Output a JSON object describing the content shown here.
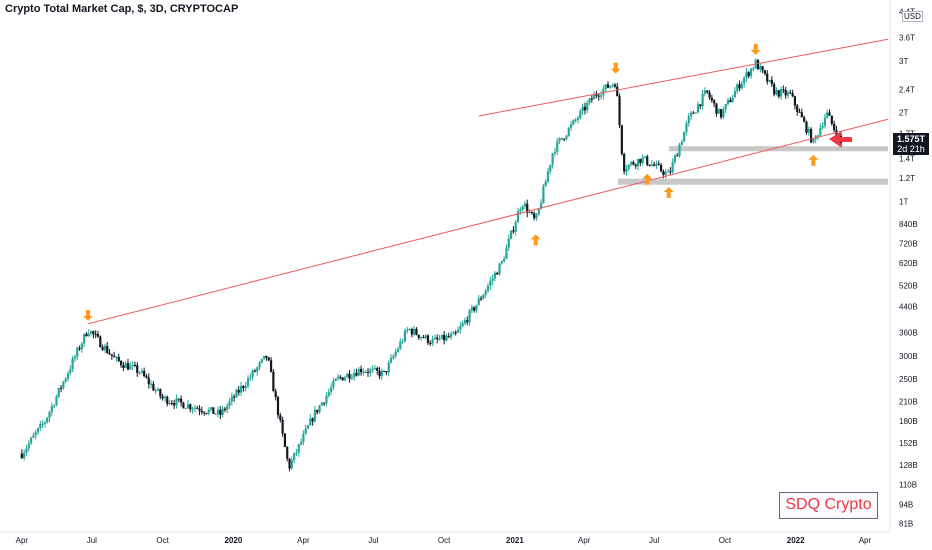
{
  "title": "Crypto Total Market Cap, $, 3D, CRYPTOCAP",
  "watermark": "SDQ Crypto",
  "currency": "USD",
  "last_price": {
    "value": "1.575T",
    "countdown": "2d 21h"
  },
  "colors": {
    "up": "#26a69a",
    "down": "#131722",
    "trendline": "#f05a5e",
    "zone": "#c8c8c8",
    "marker": "#ff9a1f",
    "pointer": "#f23645",
    "badge_text": "#e8394b"
  },
  "chart_data": {
    "type": "candlestick",
    "title": "Crypto Total Market Cap, $, 3D, CRYPTOCAP",
    "x_ticks": [
      "Apr",
      "Jul",
      "Oct",
      "2020",
      "Apr",
      "Jul",
      "Oct",
      "2021",
      "Apr",
      "Jul",
      "Oct",
      "2022",
      "Apr"
    ],
    "y_ticks": [
      "81B",
      "94B",
      "110B",
      "128B",
      "152B",
      "180B",
      "210B",
      "250B",
      "300B",
      "360B",
      "440B",
      "520B",
      "620B",
      "720B",
      "840B",
      "1T",
      "1.2T",
      "1.4T",
      "1.7T",
      "2T",
      "2.4T",
      "3T",
      "3.6T",
      "4.4T"
    ],
    "y_scale": "log",
    "y_range_billion": [
      77,
      4600
    ],
    "x_range": [
      "2019-03",
      "2022-05"
    ],
    "close_path_billion": [
      [
        "2019-04-01",
        140
      ],
      [
        "2019-05-01",
        180
      ],
      [
        "2019-06-26",
        370
      ],
      [
        "2019-08-01",
        290
      ],
      [
        "2019-09-01",
        265
      ],
      [
        "2019-10-01",
        215
      ],
      [
        "2019-11-15",
        200
      ],
      [
        "2019-12-15",
        190
      ],
      [
        "2020-01-15",
        240
      ],
      [
        "2020-02-14",
        300
      ],
      [
        "2020-03-13",
        125
      ],
      [
        "2020-04-15",
        190
      ],
      [
        "2020-05-15",
        250
      ],
      [
        "2020-06-15",
        270
      ],
      [
        "2020-07-15",
        260
      ],
      [
        "2020-08-15",
        370
      ],
      [
        "2020-09-15",
        335
      ],
      [
        "2020-10-15",
        350
      ],
      [
        "2020-11-15",
        460
      ],
      [
        "2020-12-15",
        620
      ],
      [
        "2021-01-10",
        1000
      ],
      [
        "2021-01-28",
        850
      ],
      [
        "2021-02-20",
        1500
      ],
      [
        "2021-03-15",
        1800
      ],
      [
        "2021-04-15",
        2300
      ],
      [
        "2021-05-12",
        2550
      ],
      [
        "2021-05-22",
        1300
      ],
      [
        "2021-06-15",
        1400
      ],
      [
        "2021-07-20",
        1230
      ],
      [
        "2021-08-15",
        1900
      ],
      [
        "2021-09-07",
        2350
      ],
      [
        "2021-09-25",
        1950
      ],
      [
        "2021-10-20",
        2500
      ],
      [
        "2021-11-10",
        2950
      ],
      [
        "2021-12-05",
        2350
      ],
      [
        "2021-12-25",
        2300
      ],
      [
        "2022-01-24",
        1580
      ],
      [
        "2022-02-10",
        2000
      ],
      [
        "2022-03-01",
        1575
      ]
    ],
    "trendlines": [
      {
        "name": "upper",
        "from": [
          "2020-11-15",
          1950
        ],
        "to": [
          "2022-05-01",
          3550
        ]
      },
      {
        "name": "lower",
        "from": [
          "2019-06-26",
          385
        ],
        "to": [
          "2022-05-01",
          1900
        ]
      }
    ],
    "zones": [
      {
        "from": "2021-07-20",
        "to": "2022-05-01",
        "low_billion": 1480,
        "high_billion": 1540
      },
      {
        "from": "2021-05-15",
        "to": "2022-05-01",
        "low_billion": 1140,
        "high_billion": 1195
      }
    ],
    "markers": [
      {
        "date": "2019-06-26",
        "direction": "down"
      },
      {
        "date": "2021-01-28",
        "direction": "up"
      },
      {
        "date": "2021-05-12",
        "direction": "down"
      },
      {
        "date": "2021-06-22",
        "direction": "up"
      },
      {
        "date": "2021-07-20",
        "direction": "up"
      },
      {
        "date": "2021-11-10",
        "direction": "down"
      },
      {
        "date": "2022-01-24",
        "direction": "up"
      }
    ],
    "grid": false
  }
}
